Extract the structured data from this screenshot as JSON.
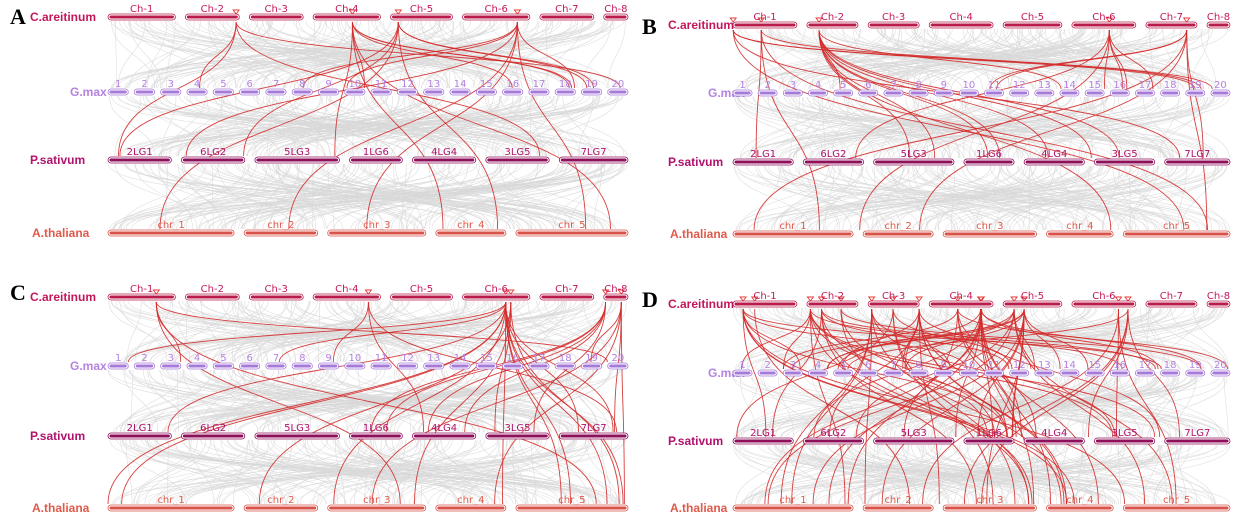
{
  "panels": [
    {
      "letter": "A"
    },
    {
      "letter": "B"
    },
    {
      "letter": "C"
    },
    {
      "letter": "D"
    }
  ],
  "species": [
    {
      "name": "C.areitinum",
      "color": "#c2185b",
      "bar_color": "#b71c4a",
      "chromosomes": [
        "Ch-1",
        "Ch-2",
        "Ch-3",
        "Ch-4",
        "Ch-5",
        "Ch-6",
        "Ch-7",
        "Ch-8"
      ]
    },
    {
      "name": "G.max",
      "color": "#b483e0",
      "bar_color": "#a67ad8",
      "chromosomes": [
        "1",
        "2",
        "3",
        "4",
        "5",
        "6",
        "7",
        "8",
        "9",
        "10",
        "11",
        "12",
        "13",
        "14",
        "15",
        "16",
        "17",
        "18",
        "19",
        "20"
      ]
    },
    {
      "name": "P.sativum",
      "color": "#b0126c",
      "bar_color": "#8e0f5a",
      "chromosomes": [
        "2LG1",
        "6LG2",
        "5LG3",
        "1LG6",
        "4LG4",
        "3LG5",
        "7LG7"
      ]
    },
    {
      "name": "A.thaliana",
      "color": "#e05a4a",
      "bar_color": "#d9534a",
      "chromosomes": [
        "chr_1",
        "chr_2",
        "chr_3",
        "chr_4",
        "chr_5"
      ]
    }
  ],
  "colors": {
    "background_links": "#d8d8d8",
    "highlight_links": "#d42a2a",
    "marker": "#e53935"
  }
}
